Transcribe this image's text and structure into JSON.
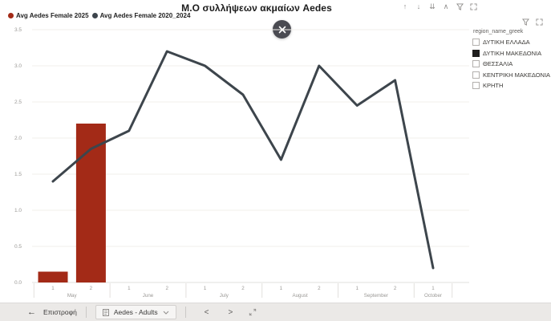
{
  "chart_data": {
    "type": "combo",
    "title": "Μ.Ο συλλήψεων ακμαίων Aedes",
    "legend_position": "top-left",
    "grid": true,
    "ylim": [
      0,
      3.5
    ],
    "y_ticks": [
      "0.0",
      "0.5",
      "1.0",
      "1.5",
      "2.0",
      "2.5",
      "3.0",
      "3.5"
    ],
    "x_tick_labels": [
      "1",
      "2",
      "1",
      "2",
      "1",
      "2",
      "1",
      "2",
      "1",
      "2",
      "1"
    ],
    "month_groups": [
      {
        "label": "May",
        "span": 2
      },
      {
        "label": "June",
        "span": 2
      },
      {
        "label": "July",
        "span": 2
      },
      {
        "label": "August",
        "span": 2
      },
      {
        "label": "September",
        "span": 2
      },
      {
        "label": "October",
        "span": 1
      }
    ],
    "series": [
      {
        "name": "Avg Aedes Female 2025",
        "type": "bar",
        "color": "#A32A17",
        "values": [
          0.15,
          2.2,
          null,
          null,
          null,
          null,
          null,
          null,
          null,
          null,
          null
        ]
      },
      {
        "name": "Avg Aedes Female 2020_2024",
        "type": "line",
        "color": "#3D454C",
        "values": [
          1.4,
          1.85,
          2.1,
          3.2,
          3.0,
          2.6,
          1.7,
          3.0,
          2.45,
          2.8,
          0.2
        ]
      }
    ]
  },
  "toolbar": {
    "icons": [
      "drill-up",
      "drill-down",
      "expand-all-down",
      "drill-mode",
      "filter",
      "focus-mode"
    ]
  },
  "slicer": {
    "title": "region_name_greek",
    "options": [
      {
        "label": "ΔΥΤΙΚΗ ΕΛΛΑΔΑ",
        "checked": false
      },
      {
        "label": "ΔΥΤΙΚΗ ΜΑΚΕΔΟΝΙΑ",
        "checked": true
      },
      {
        "label": "ΘΕΣΣΑΛΙΑ",
        "checked": false
      },
      {
        "label": "ΚΕΝΤΡΙΚΗ ΜΑΚΕΔΟΝΙΑ",
        "checked": false
      },
      {
        "label": "ΚΡΗΤΗ",
        "checked": false
      }
    ]
  },
  "nav": {
    "back_label": "Επιστροφή",
    "page_tab": "Aedes - Adults"
  },
  "icons": {
    "drill_up": "↑",
    "drill_down": "↓",
    "expand_all": "⇊",
    "drill_mode": "∧",
    "back_arrow": "←",
    "prev_page": "<",
    "next_page": ">"
  },
  "colors": {
    "bar_2025": "#A32A17",
    "line_2020_2024": "#3D454C",
    "close_button_bg": "#4a4b52",
    "bottom_bar_bg": "#ebe9e7"
  }
}
